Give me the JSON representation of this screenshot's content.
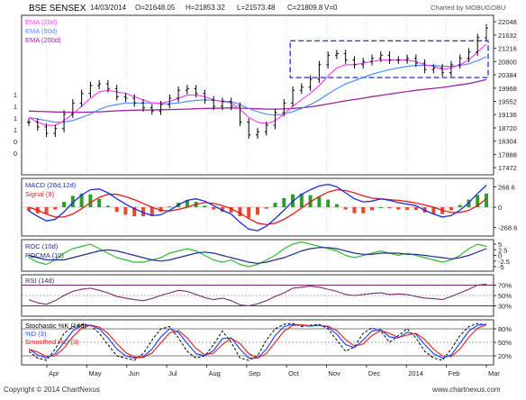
{
  "header": {
    "symbol": "BSE SENSEX",
    "date": "14/03/2014",
    "open": "O=21648.05",
    "high": "H=21853.32",
    "low": "L=21573.48",
    "close": "C=21809.8",
    "volume": "V=0",
    "charted_by": "Charted by MOBUGOBU"
  },
  "footer": {
    "copyright": "Copyright © 2014 ChartNexus",
    "site": "www.chartnexus.com"
  },
  "colors": {
    "price_bar": "#000000",
    "ema20": "#ff3fff",
    "ema50": "#4f8fff",
    "ema200": "#a020a0",
    "macd": "#1c2cd8",
    "signal": "#e31b1b",
    "hist_up": "#2e9b2e",
    "hist_down": "#e34a2a",
    "roc": "#33bb33",
    "rocma": "#1c2c8c",
    "rsi": "#7a2a6a",
    "stoch_k": "#000000",
    "stoch_d": "#1c4cff",
    "stoch_smooth": "#e31b1b",
    "box": "#3a3ad8",
    "panel_border": "#333333"
  },
  "chart_data": [
    {
      "type": "candlestick",
      "legend": [
        "EMA (20d)",
        "EMA (50d)",
        "EMA (200d)"
      ],
      "yticks": [
        "22048",
        "21632",
        "21216",
        "20800",
        "20384",
        "19968",
        "19552",
        "19136",
        "18720",
        "18304",
        "17888",
        "17472"
      ],
      "yrange": [
        17250,
        22250
      ],
      "xticks": [
        "Apr",
        "May",
        "Jun",
        "Jul",
        "Aug",
        "Sep",
        "Oct",
        "Nov",
        "Dec",
        "2014",
        "Feb",
        "Mar"
      ],
      "left_axis_marks": [
        "1",
        "1",
        "1",
        "1",
        "0",
        "0"
      ],
      "close_series_approx": [
        18900,
        18750,
        18550,
        18700,
        19150,
        19500,
        19800,
        20050,
        20100,
        19950,
        19700,
        19650,
        19500,
        19350,
        19250,
        19450,
        19650,
        19900,
        19950,
        19800,
        19600,
        19400,
        19550,
        19400,
        18900,
        18500,
        18600,
        18800,
        19200,
        19500,
        19900,
        20000,
        20250,
        20700,
        21000,
        21050,
        20850,
        20700,
        20800,
        20900,
        21000,
        20850,
        20850,
        20900,
        20750,
        20550,
        20600,
        20450,
        20700,
        20900,
        21100,
        21550,
        21850
      ],
      "ema20_approx": [
        19050,
        18900,
        18800,
        18800,
        18950,
        19150,
        19400,
        19650,
        19850,
        19900,
        19850,
        19800,
        19700,
        19600,
        19500,
        19500,
        19550,
        19650,
        19750,
        19750,
        19700,
        19600,
        19550,
        19500,
        19300,
        19050,
        18900,
        18850,
        18950,
        19150,
        19400,
        19600,
        19800,
        20050,
        20350,
        20600,
        20700,
        20700,
        20750,
        20800,
        20850,
        20850,
        20850,
        20850,
        20800,
        20700,
        20650,
        20550,
        20600,
        20700,
        20850,
        21100,
        21350
      ],
      "ema50_approx": [
        19050,
        19000,
        18950,
        18900,
        18900,
        18950,
        19050,
        19150,
        19300,
        19400,
        19450,
        19500,
        19500,
        19500,
        19500,
        19480,
        19480,
        19500,
        19550,
        19580,
        19600,
        19580,
        19560,
        19540,
        19450,
        19330,
        19230,
        19150,
        19120,
        19150,
        19230,
        19330,
        19450,
        19600,
        19780,
        19950,
        20100,
        20200,
        20300,
        20400,
        20480,
        20550,
        20600,
        20650,
        20680,
        20680,
        20680,
        20650,
        20650,
        20680,
        20730,
        20830,
        20950
      ],
      "ema200_approx": [
        19250,
        19240,
        19230,
        19220,
        19215,
        19210,
        19210,
        19215,
        19225,
        19240,
        19255,
        19265,
        19275,
        19280,
        19285,
        19290,
        19295,
        19300,
        19310,
        19320,
        19330,
        19335,
        19340,
        19345,
        19340,
        19330,
        19320,
        19310,
        19310,
        19315,
        19330,
        19350,
        19380,
        19420,
        19470,
        19520,
        19570,
        19610,
        19650,
        19700,
        19740,
        19780,
        19820,
        19860,
        19900,
        19930,
        19960,
        19990,
        20030,
        20070,
        20110,
        20170,
        20240
      ],
      "range_box": {
        "from": "Oct",
        "to": "Mar",
        "high": 21450,
        "low": 20300
      }
    },
    {
      "type": "line",
      "title": "MACD (26d,12d)",
      "legend": [
        "MACD (26d,12d)",
        "Signal (9)"
      ],
      "yticks": [
        "268.6",
        "0",
        "-268.6"
      ],
      "yrange": [
        -380,
        380
      ],
      "macd_approx": [
        -50,
        -120,
        -180,
        -160,
        -60,
        60,
        160,
        230,
        240,
        190,
        110,
        40,
        -20,
        -70,
        -110,
        -100,
        -40,
        30,
        90,
        110,
        80,
        20,
        -40,
        -90,
        -200,
        -290,
        -310,
        -250,
        -150,
        -40,
        80,
        170,
        230,
        280,
        300,
        270,
        190,
        110,
        70,
        80,
        110,
        90,
        60,
        40,
        20,
        -40,
        -90,
        -130,
        -110,
        -40,
        60,
        180,
        290
      ],
      "signal_approx": [
        0,
        -40,
        -90,
        -130,
        -130,
        -90,
        -20,
        60,
        130,
        170,
        170,
        140,
        100,
        50,
        0,
        -40,
        -50,
        -30,
        0,
        40,
        60,
        50,
        20,
        -20,
        -80,
        -150,
        -210,
        -230,
        -210,
        -160,
        -90,
        -10,
        70,
        140,
        200,
        230,
        220,
        190,
        150,
        120,
        110,
        100,
        90,
        75,
        55,
        30,
        0,
        -40,
        -70,
        -70,
        -40,
        20,
        110
      ]
    },
    {
      "type": "line",
      "title": "ROC (10d)",
      "legend": [
        "ROC (10d)",
        "ROCMA (10)"
      ],
      "yticks": [
        "5",
        "2.5",
        "0",
        "-2.5",
        "-5"
      ],
      "yrange": [
        -7,
        7
      ],
      "roc_approx": [
        -1,
        -3,
        -4,
        -2,
        1,
        3,
        4,
        5,
        3,
        1,
        -1,
        -2,
        -3,
        -3,
        -2,
        -1,
        1,
        2,
        3,
        2,
        0,
        -2,
        -3,
        -2,
        -4,
        -5,
        -4,
        -2,
        0,
        3,
        5,
        6,
        5,
        4,
        3,
        2,
        0,
        -1,
        0,
        1,
        2,
        1,
        0,
        1,
        0,
        -1,
        -2,
        -3,
        -2,
        0,
        3,
        5,
        4
      ],
      "rocma_approx": [
        0,
        -1,
        -2,
        -2,
        -2,
        -1,
        0,
        1,
        2,
        2.5,
        2,
        1,
        0,
        -1,
        -2,
        -2.5,
        -2,
        -1,
        0,
        1,
        1.5,
        1,
        0,
        -1,
        -2,
        -3,
        -3.5,
        -3,
        -2,
        -1,
        0.5,
        2,
        3,
        3.5,
        3.5,
        3,
        2,
        1,
        0.5,
        0.5,
        1,
        1,
        1,
        0.5,
        0.5,
        0,
        -0.5,
        -1,
        -1.5,
        -1,
        0,
        1.5,
        3
      ]
    },
    {
      "type": "line",
      "title": "RSI (14d)",
      "yticks": [
        "70%",
        "50%",
        "30%"
      ],
      "yrange": [
        10,
        90
      ],
      "rsi_approx": [
        42,
        36,
        33,
        40,
        50,
        58,
        62,
        64,
        60,
        55,
        48,
        45,
        42,
        40,
        44,
        50,
        55,
        60,
        58,
        52,
        46,
        42,
        45,
        40,
        32,
        30,
        34,
        40,
        48,
        55,
        64,
        66,
        68,
        66,
        62,
        58,
        52,
        50,
        52,
        54,
        55,
        52,
        53,
        52,
        48,
        45,
        44,
        42,
        48,
        55,
        62,
        70,
        72
      ]
    },
    {
      "type": "line",
      "title": "Stochastic %K (14d)",
      "legend": [
        "Stochastic %K (14d)",
        "%D (3)",
        "Smoothed %D (3)"
      ],
      "yticks": [
        "80%",
        "50%",
        "20%"
      ],
      "yrange": [
        0,
        100
      ],
      "k_approx": [
        30,
        15,
        10,
        35,
        70,
        85,
        90,
        88,
        70,
        45,
        20,
        15,
        10,
        25,
        55,
        80,
        85,
        60,
        30,
        15,
        20,
        45,
        75,
        50,
        15,
        10,
        20,
        55,
        80,
        90,
        92,
        85,
        88,
        90,
        80,
        55,
        30,
        40,
        70,
        82,
        75,
        50,
        65,
        80,
        60,
        30,
        15,
        10,
        35,
        65,
        85,
        92,
        88
      ],
      "d_approx": [
        35,
        22,
        15,
        25,
        50,
        75,
        88,
        88,
        80,
        60,
        35,
        20,
        15,
        18,
        35,
        62,
        80,
        72,
        48,
        25,
        20,
        32,
        58,
        60,
        35,
        15,
        15,
        35,
        65,
        85,
        90,
        88,
        86,
        88,
        84,
        68,
        45,
        38,
        55,
        75,
        78,
        62,
        60,
        72,
        68,
        45,
        25,
        15,
        22,
        48,
        75,
        88,
        90
      ]
    }
  ]
}
